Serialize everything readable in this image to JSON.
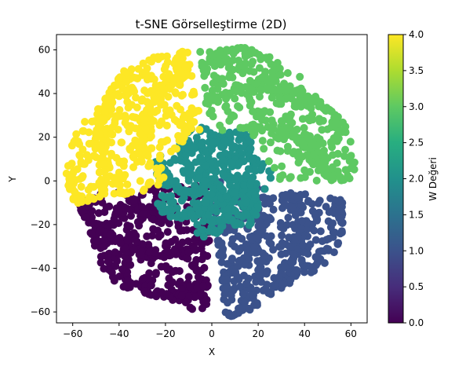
{
  "chart_data": {
    "type": "scatter",
    "title": "t-SNE Görselleştirme (2D)",
    "xlabel": "X",
    "ylabel": "Y",
    "xlim": [
      -67,
      67
    ],
    "ylim": [
      -65,
      67
    ],
    "xticks": [
      -60,
      -40,
      -20,
      0,
      20,
      40,
      60
    ],
    "yticks": [
      -60,
      -40,
      -20,
      0,
      20,
      40,
      60
    ],
    "colorbar": {
      "label": "W Değeri",
      "range": [
        0.0,
        4.0
      ],
      "ticks": [
        "0.0",
        "0.5",
        "1.0",
        "1.5",
        "2.0",
        "2.5",
        "3.0",
        "3.5",
        "4.0"
      ],
      "colormap": "viridis"
    },
    "grid": false,
    "clusters": [
      {
        "w": 0,
        "color": "#440154",
        "region": "bottom-left",
        "angle_range_deg": [
          187,
          268
        ],
        "r_range": [
          2,
          60
        ]
      },
      {
        "w": 1,
        "color": "#3b528b",
        "region": "bottom-right",
        "angle_range_deg": [
          275,
          352
        ],
        "r_range": [
          2,
          60
        ]
      },
      {
        "w": 2,
        "color": "#21918c",
        "region": "center",
        "angle_range_deg": [
          0,
          360
        ],
        "r_range": [
          0,
          24
        ]
      },
      {
        "w": 3,
        "color": "#5ec962",
        "region": "top-right",
        "angle_range_deg": [
          0,
          95
        ],
        "r_range": [
          22,
          62
        ]
      },
      {
        "w": 4,
        "color": "#fde725",
        "region": "top-left",
        "angle_range_deg": [
          100,
          190
        ],
        "r_range": [
          18,
          62
        ]
      }
    ]
  }
}
